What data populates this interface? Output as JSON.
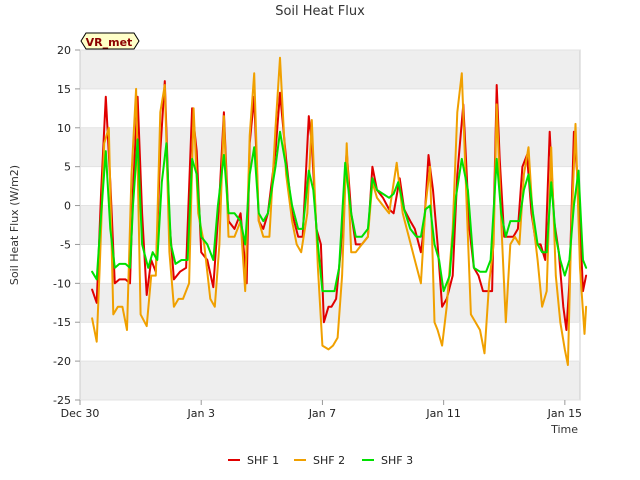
{
  "chart_data": {
    "type": "line",
    "title": "Soil Heat Flux",
    "xlabel": "Time",
    "ylabel": "Soil Heat Flux (W/m2)",
    "badge": "VR_met",
    "ylim": [
      -25,
      20
    ],
    "xlim": [
      0,
      16.5
    ],
    "yticks": [
      -25,
      -20,
      -15,
      -10,
      -5,
      0,
      5,
      10,
      15,
      20
    ],
    "x_ticks": [
      {
        "x": 0,
        "label": "Dec 30"
      },
      {
        "x": 4,
        "label": "Jan 3"
      },
      {
        "x": 8,
        "label": "Jan 7"
      },
      {
        "x": 12,
        "label": "Jan 11"
      },
      {
        "x": 16,
        "label": "Jan 15"
      }
    ],
    "band_color": "#eeeeee",
    "series": [
      {
        "name": "SHF 1",
        "color": "#e00000",
        "points": [
          [
            0.4,
            -10.8
          ],
          [
            0.55,
            -12.5
          ],
          [
            0.7,
            2
          ],
          [
            0.85,
            14
          ],
          [
            1.0,
            3
          ],
          [
            1.15,
            -10
          ],
          [
            1.3,
            -9.5
          ],
          [
            1.5,
            -9.5
          ],
          [
            1.65,
            -10
          ],
          [
            1.75,
            2
          ],
          [
            1.9,
            14
          ],
          [
            2.05,
            -1
          ],
          [
            2.2,
            -11.5
          ],
          [
            2.35,
            -7
          ],
          [
            2.5,
            -8.5
          ],
          [
            2.65,
            7
          ],
          [
            2.8,
            16
          ],
          [
            2.95,
            -2
          ],
          [
            3.1,
            -9.5
          ],
          [
            3.3,
            -8.5
          ],
          [
            3.5,
            -8
          ],
          [
            3.7,
            12.5
          ],
          [
            3.85,
            7
          ],
          [
            4.0,
            -6
          ],
          [
            4.2,
            -7
          ],
          [
            4.4,
            -10.5
          ],
          [
            4.6,
            1
          ],
          [
            4.75,
            12
          ],
          [
            4.9,
            -2
          ],
          [
            5.1,
            -3
          ],
          [
            5.3,
            -1
          ],
          [
            5.5,
            -10
          ],
          [
            5.6,
            8
          ],
          [
            5.75,
            14
          ],
          [
            5.9,
            -2
          ],
          [
            6.05,
            -3
          ],
          [
            6.2,
            -1
          ],
          [
            6.45,
            7
          ],
          [
            6.6,
            14.5
          ],
          [
            6.8,
            6
          ],
          [
            7.0,
            -1
          ],
          [
            7.2,
            -4
          ],
          [
            7.35,
            -4
          ],
          [
            7.55,
            11.5
          ],
          [
            7.65,
            8
          ],
          [
            7.8,
            -3
          ],
          [
            7.95,
            -5
          ],
          [
            8.05,
            -15
          ],
          [
            8.2,
            -13
          ],
          [
            8.3,
            -13
          ],
          [
            8.45,
            -12
          ],
          [
            8.6,
            -6
          ],
          [
            8.8,
            7
          ],
          [
            8.95,
            -1
          ],
          [
            9.1,
            -5
          ],
          [
            9.3,
            -5
          ],
          [
            9.5,
            -4
          ],
          [
            9.65,
            5
          ],
          [
            9.8,
            2
          ],
          [
            10.0,
            1
          ],
          [
            10.2,
            -0.5
          ],
          [
            10.35,
            -1
          ],
          [
            10.55,
            3.5
          ],
          [
            10.7,
            -0.5
          ],
          [
            10.9,
            -2
          ],
          [
            11.05,
            -3
          ],
          [
            11.25,
            -6
          ],
          [
            11.35,
            -3
          ],
          [
            11.5,
            6.5
          ],
          [
            11.65,
            2
          ],
          [
            11.8,
            -5
          ],
          [
            11.95,
            -13
          ],
          [
            12.1,
            -12
          ],
          [
            12.3,
            -9
          ],
          [
            12.45,
            4
          ],
          [
            12.65,
            13
          ],
          [
            12.85,
            -3
          ],
          [
            13.0,
            -8
          ],
          [
            13.15,
            -9
          ],
          [
            13.3,
            -11
          ],
          [
            13.45,
            -11
          ],
          [
            13.6,
            -11
          ],
          [
            13.75,
            15.5
          ],
          [
            13.85,
            6
          ],
          [
            14.0,
            -4
          ],
          [
            14.15,
            -4
          ],
          [
            14.3,
            -4
          ],
          [
            14.45,
            -3
          ],
          [
            14.6,
            5
          ],
          [
            14.75,
            6.5
          ],
          [
            14.9,
            -1
          ],
          [
            15.05,
            -5
          ],
          [
            15.2,
            -5
          ],
          [
            15.35,
            -7
          ],
          [
            15.5,
            9.5
          ],
          [
            15.65,
            -2
          ],
          [
            15.8,
            -6
          ],
          [
            15.95,
            -13
          ],
          [
            16.05,
            -16
          ],
          [
            16.15,
            -10
          ],
          [
            16.3,
            9.5
          ],
          [
            16.45,
            2
          ],
          [
            16.6,
            -11
          ],
          [
            16.7,
            -9
          ]
        ]
      },
      {
        "name": "SHF 2",
        "color": "#f0a000",
        "points": [
          [
            0.4,
            -14.5
          ],
          [
            0.55,
            -17.5
          ],
          [
            0.65,
            -8
          ],
          [
            0.8,
            8
          ],
          [
            0.95,
            10
          ],
          [
            1.1,
            -14
          ],
          [
            1.25,
            -13
          ],
          [
            1.4,
            -13
          ],
          [
            1.55,
            -16
          ],
          [
            1.7,
            4
          ],
          [
            1.85,
            15
          ],
          [
            2.0,
            -14
          ],
          [
            2.2,
            -15.5
          ],
          [
            2.35,
            -9
          ],
          [
            2.5,
            -9
          ],
          [
            2.65,
            12
          ],
          [
            2.8,
            15.5
          ],
          [
            2.95,
            -6
          ],
          [
            3.1,
            -13
          ],
          [
            3.25,
            -12
          ],
          [
            3.4,
            -12
          ],
          [
            3.6,
            -10
          ],
          [
            3.75,
            12.5
          ],
          [
            3.9,
            -1
          ],
          [
            4.1,
            -5
          ],
          [
            4.3,
            -12
          ],
          [
            4.45,
            -13
          ],
          [
            4.6,
            -5
          ],
          [
            4.75,
            11.5
          ],
          [
            4.9,
            -4
          ],
          [
            5.1,
            -4
          ],
          [
            5.3,
            -2
          ],
          [
            5.45,
            -11
          ],
          [
            5.6,
            9
          ],
          [
            5.75,
            17
          ],
          [
            5.9,
            -2
          ],
          [
            6.05,
            -4
          ],
          [
            6.25,
            -4
          ],
          [
            6.45,
            10
          ],
          [
            6.6,
            19
          ],
          [
            6.8,
            4
          ],
          [
            7.0,
            -2
          ],
          [
            7.15,
            -5
          ],
          [
            7.3,
            -6
          ],
          [
            7.5,
            -1
          ],
          [
            7.65,
            11
          ],
          [
            7.85,
            -8
          ],
          [
            8.0,
            -18
          ],
          [
            8.2,
            -18.5
          ],
          [
            8.35,
            -18
          ],
          [
            8.5,
            -17
          ],
          [
            8.65,
            -9
          ],
          [
            8.8,
            8
          ],
          [
            8.95,
            -6
          ],
          [
            9.1,
            -6
          ],
          [
            9.3,
            -5
          ],
          [
            9.5,
            -4
          ],
          [
            9.65,
            3
          ],
          [
            9.8,
            1
          ],
          [
            10.0,
            0
          ],
          [
            10.2,
            -1
          ],
          [
            10.45,
            5.5
          ],
          [
            10.65,
            -1
          ],
          [
            10.85,
            -4
          ],
          [
            11.05,
            -7
          ],
          [
            11.25,
            -10
          ],
          [
            11.4,
            0
          ],
          [
            11.55,
            5
          ],
          [
            11.7,
            -15
          ],
          [
            11.8,
            -16
          ],
          [
            11.95,
            -18
          ],
          [
            12.1,
            -13
          ],
          [
            12.3,
            -3
          ],
          [
            12.45,
            12
          ],
          [
            12.6,
            17
          ],
          [
            12.75,
            1
          ],
          [
            12.9,
            -14
          ],
          [
            13.05,
            -15
          ],
          [
            13.2,
            -16
          ],
          [
            13.35,
            -19
          ],
          [
            13.5,
            -10
          ],
          [
            13.65,
            -5
          ],
          [
            13.75,
            13
          ],
          [
            13.9,
            -2
          ],
          [
            14.05,
            -15
          ],
          [
            14.2,
            -5
          ],
          [
            14.35,
            -4
          ],
          [
            14.5,
            -5
          ],
          [
            14.65,
            4
          ],
          [
            14.8,
            7.5
          ],
          [
            14.95,
            -2
          ],
          [
            15.1,
            -7
          ],
          [
            15.25,
            -13
          ],
          [
            15.4,
            -11
          ],
          [
            15.55,
            7.5
          ],
          [
            15.7,
            -9
          ],
          [
            15.85,
            -15
          ],
          [
            16.0,
            -18.5
          ],
          [
            16.1,
            -20.5
          ],
          [
            16.2,
            -5
          ],
          [
            16.35,
            10.5
          ],
          [
            16.5,
            -8
          ],
          [
            16.65,
            -16.5
          ],
          [
            16.7,
            -13
          ]
        ]
      },
      {
        "name": "SHF 3",
        "color": "#00e000",
        "points": [
          [
            0.4,
            -8.5
          ],
          [
            0.55,
            -9.5
          ],
          [
            0.7,
            -1
          ],
          [
            0.85,
            7
          ],
          [
            1.0,
            -3
          ],
          [
            1.15,
            -8
          ],
          [
            1.3,
            -7.5
          ],
          [
            1.5,
            -7.5
          ],
          [
            1.65,
            -8
          ],
          [
            1.75,
            0
          ],
          [
            1.9,
            8.5
          ],
          [
            2.05,
            -5
          ],
          [
            2.25,
            -8
          ],
          [
            2.4,
            -6
          ],
          [
            2.55,
            -7
          ],
          [
            2.7,
            3
          ],
          [
            2.85,
            8
          ],
          [
            3.0,
            -5
          ],
          [
            3.15,
            -7.5
          ],
          [
            3.35,
            -7
          ],
          [
            3.55,
            -7
          ],
          [
            3.7,
            6
          ],
          [
            3.85,
            4
          ],
          [
            4.0,
            -4
          ],
          [
            4.2,
            -5
          ],
          [
            4.4,
            -7
          ],
          [
            4.55,
            0
          ],
          [
            4.75,
            6.5
          ],
          [
            4.9,
            -1
          ],
          [
            5.1,
            -1
          ],
          [
            5.3,
            -2
          ],
          [
            5.45,
            -5
          ],
          [
            5.6,
            4
          ],
          [
            5.75,
            7.5
          ],
          [
            5.9,
            -1
          ],
          [
            6.05,
            -2
          ],
          [
            6.2,
            -1
          ],
          [
            6.45,
            5
          ],
          [
            6.6,
            9.5
          ],
          [
            6.8,
            5
          ],
          [
            7.0,
            0
          ],
          [
            7.2,
            -3
          ],
          [
            7.35,
            -3
          ],
          [
            7.55,
            4.5
          ],
          [
            7.7,
            2
          ],
          [
            7.85,
            -5
          ],
          [
            8.0,
            -11
          ],
          [
            8.2,
            -11
          ],
          [
            8.4,
            -11
          ],
          [
            8.55,
            -8
          ],
          [
            8.75,
            5.5
          ],
          [
            8.95,
            -1
          ],
          [
            9.1,
            -4
          ],
          [
            9.3,
            -4
          ],
          [
            9.5,
            -3
          ],
          [
            9.65,
            3.5
          ],
          [
            9.8,
            2
          ],
          [
            10.0,
            1.5
          ],
          [
            10.2,
            1
          ],
          [
            10.35,
            1.5
          ],
          [
            10.5,
            3
          ],
          [
            10.7,
            -0.5
          ],
          [
            10.9,
            -3
          ],
          [
            11.1,
            -4
          ],
          [
            11.25,
            -4
          ],
          [
            11.4,
            -0.5
          ],
          [
            11.55,
            0
          ],
          [
            11.7,
            -5
          ],
          [
            11.85,
            -7
          ],
          [
            12.0,
            -11
          ],
          [
            12.2,
            -9
          ],
          [
            12.4,
            1
          ],
          [
            12.6,
            6
          ],
          [
            12.8,
            2
          ],
          [
            13.0,
            -8
          ],
          [
            13.2,
            -8.5
          ],
          [
            13.4,
            -8.5
          ],
          [
            13.55,
            -7
          ],
          [
            13.75,
            6
          ],
          [
            13.9,
            -1
          ],
          [
            14.05,
            -4
          ],
          [
            14.2,
            -2
          ],
          [
            14.35,
            -2
          ],
          [
            14.5,
            -2
          ],
          [
            14.65,
            2
          ],
          [
            14.8,
            4
          ],
          [
            14.95,
            -1
          ],
          [
            15.1,
            -5
          ],
          [
            15.25,
            -6
          ],
          [
            15.4,
            -6
          ],
          [
            15.55,
            3
          ],
          [
            15.7,
            -4
          ],
          [
            15.85,
            -7
          ],
          [
            16.0,
            -9
          ],
          [
            16.15,
            -7
          ],
          [
            16.3,
            0
          ],
          [
            16.45,
            4.5
          ],
          [
            16.6,
            -7
          ],
          [
            16.7,
            -8
          ]
        ]
      }
    ]
  }
}
